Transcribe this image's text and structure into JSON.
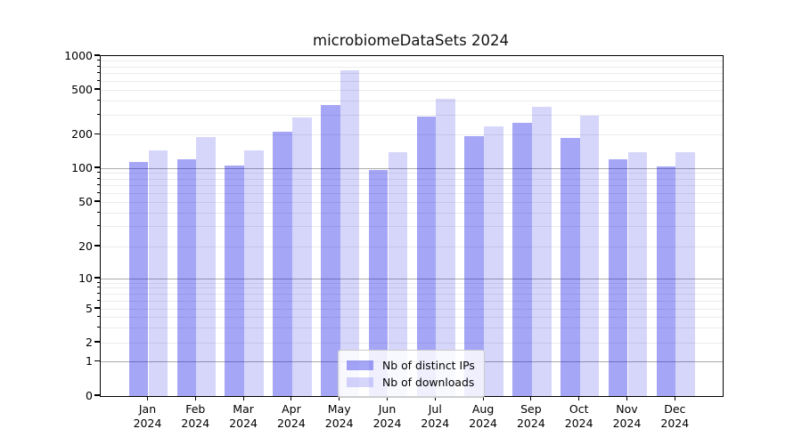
{
  "chart_data": {
    "type": "bar",
    "title": "microbiomeDataSets 2024",
    "categories": [
      "Jan 2024",
      "Feb 2024",
      "Mar 2024",
      "Apr 2024",
      "May 2024",
      "Jun 2024",
      "Jul 2024",
      "Aug 2024",
      "Sep 2024",
      "Oct 2024",
      "Nov 2024",
      "Dec 2024"
    ],
    "series": [
      {
        "name": "Nb of distinct IPs",
        "color": "#a6a6f2",
        "fill_rgba": "rgba(0,0,230,0.35)",
        "values": [
          113,
          120,
          106,
          212,
          365,
          96,
          292,
          194,
          256,
          188,
          121,
          104
        ]
      },
      {
        "name": "Nb of downloads",
        "color": "#d9d9f8",
        "fill_rgba": "rgba(0,0,230,0.16)",
        "values": [
          145,
          190,
          144,
          285,
          750,
          139,
          420,
          236,
          355,
          293,
          140,
          139
        ]
      }
    ],
    "yscale": "symlog",
    "ylim": [
      0,
      1000
    ],
    "yticks": [
      0,
      1,
      2,
      5,
      10,
      20,
      50,
      100,
      200,
      500,
      1000
    ],
    "grid": true,
    "grid_major_ticks": [
      1,
      10,
      100,
      1000
    ],
    "grid_minor_ticks": [
      2,
      3,
      4,
      5,
      6,
      7,
      8,
      9,
      20,
      30,
      40,
      50,
      60,
      70,
      80,
      90,
      200,
      300,
      400,
      500,
      600,
      700,
      800,
      900
    ],
    "legend_position": "lower center",
    "xlabel": "",
    "ylabel": ""
  }
}
